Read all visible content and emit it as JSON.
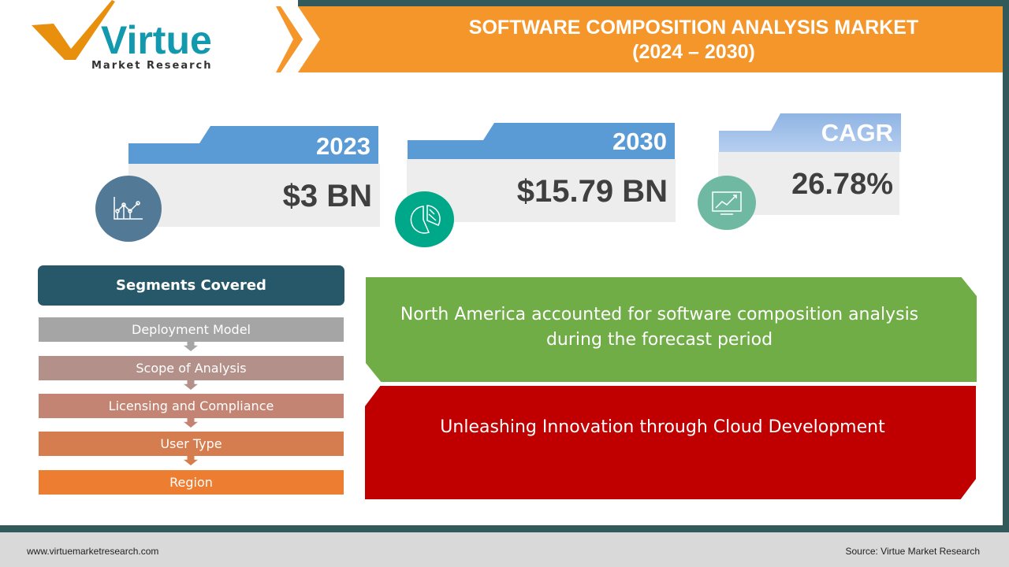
{
  "logo": {
    "brand": "Virtue",
    "tagline": "Market Research"
  },
  "header": {
    "title_line1": "SOFTWARE COMPOSITION ANALYSIS MARKET",
    "title_line2": "(2024 – 2030)"
  },
  "stats": [
    {
      "label": "2023",
      "value": "$3 BN",
      "icon": "line-chart-icon",
      "icon_color": "#527a96"
    },
    {
      "label": "2030",
      "value": "$15.79 BN",
      "icon": "pie-chart-icon",
      "icon_color": "#00a88a"
    },
    {
      "label": "CAGR",
      "value": "26.78%",
      "icon": "growth-chart-icon",
      "icon_color": "#6fb9a3"
    }
  ],
  "segments": {
    "title": "Segments Covered",
    "items": [
      "Deployment Model",
      "Scope of Analysis",
      "Licensing and Compliance",
      "User Type",
      "Region"
    ]
  },
  "highlights": {
    "region": "North America accounted for software composition analysis during the forecast period",
    "trend": "Unleashing Innovation through Cloud Development"
  },
  "footer": {
    "website": "www.virtuemarketresearch.com",
    "source": "Source: Virtue Market Research"
  },
  "colors": {
    "accent": "#f5962b",
    "dark": "#335a5a",
    "blue": "#5b9bd5",
    "green": "#70ad47",
    "red": "#c00000"
  }
}
